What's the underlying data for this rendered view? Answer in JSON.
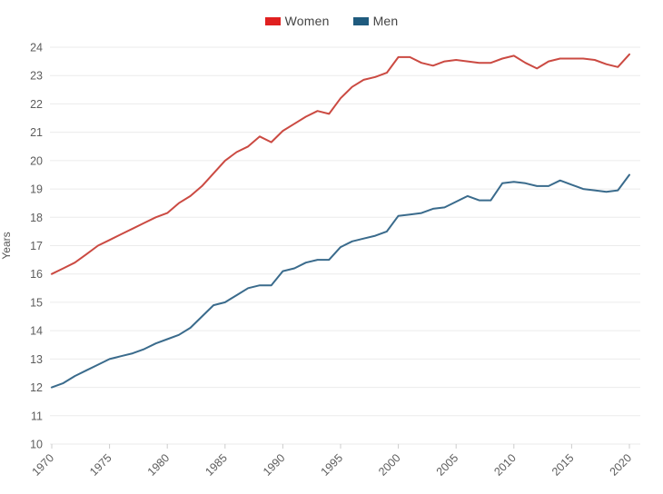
{
  "legend": {
    "items": [
      {
        "label": "Women",
        "color": "#e02020"
      },
      {
        "label": "Men",
        "color": "#1f5b7e"
      }
    ]
  },
  "chart_data": {
    "type": "line",
    "title": "",
    "xlabel": "",
    "ylabel": "Years",
    "ylim": [
      10,
      24
    ],
    "y_tick_step": 1,
    "x_ticks": [
      1970,
      1975,
      1980,
      1985,
      1990,
      1995,
      2000,
      2005,
      2010,
      2015,
      2020
    ],
    "grid": "horizontal",
    "legend_position": "top-center",
    "x": [
      1970,
      1971,
      1972,
      1973,
      1974,
      1975,
      1976,
      1977,
      1978,
      1979,
      1980,
      1981,
      1982,
      1983,
      1984,
      1985,
      1986,
      1987,
      1988,
      1989,
      1990,
      1991,
      1992,
      1993,
      1994,
      1995,
      1996,
      1997,
      1998,
      1999,
      2000,
      2001,
      2002,
      2003,
      2004,
      2005,
      2006,
      2007,
      2008,
      2009,
      2010,
      2011,
      2012,
      2013,
      2014,
      2015,
      2016,
      2017,
      2018,
      2019,
      2020
    ],
    "series": [
      {
        "name": "Women",
        "color": "#cb4a42",
        "values": [
          16.0,
          16.2,
          16.4,
          16.7,
          17.0,
          17.2,
          17.4,
          17.6,
          17.8,
          18.0,
          18.15,
          18.5,
          18.75,
          19.1,
          19.55,
          20.0,
          20.3,
          20.5,
          20.85,
          20.65,
          21.05,
          21.3,
          21.55,
          21.75,
          21.65,
          22.2,
          22.6,
          22.85,
          22.95,
          23.1,
          23.65,
          23.65,
          23.45,
          23.35,
          23.5,
          23.55,
          23.5,
          23.45,
          23.45,
          23.6,
          23.7,
          23.45,
          23.25,
          23.5,
          23.6,
          23.6,
          23.6,
          23.55,
          23.4,
          23.3,
          23.75
        ]
      },
      {
        "name": "Men",
        "color": "#3a6b8c",
        "values": [
          12.0,
          12.15,
          12.4,
          12.6,
          12.8,
          13.0,
          13.1,
          13.2,
          13.35,
          13.55,
          13.7,
          13.85,
          14.1,
          14.5,
          14.9,
          15.0,
          15.25,
          15.5,
          15.6,
          15.6,
          16.1,
          16.2,
          16.4,
          16.5,
          16.5,
          16.95,
          17.15,
          17.25,
          17.35,
          17.5,
          18.05,
          18.1,
          18.15,
          18.3,
          18.35,
          18.55,
          18.75,
          18.6,
          18.6,
          19.2,
          19.25,
          19.2,
          19.1,
          19.1,
          19.3,
          19.15,
          19.0,
          18.95,
          18.9,
          18.95,
          19.5
        ]
      }
    ],
    "style": {
      "gridline_color": "#ebebeb",
      "tick_label_color": "#5d5d5d",
      "axis_title_color": "#555555",
      "tick_mark_color": "#cccccc",
      "background": "#ffffff"
    }
  }
}
